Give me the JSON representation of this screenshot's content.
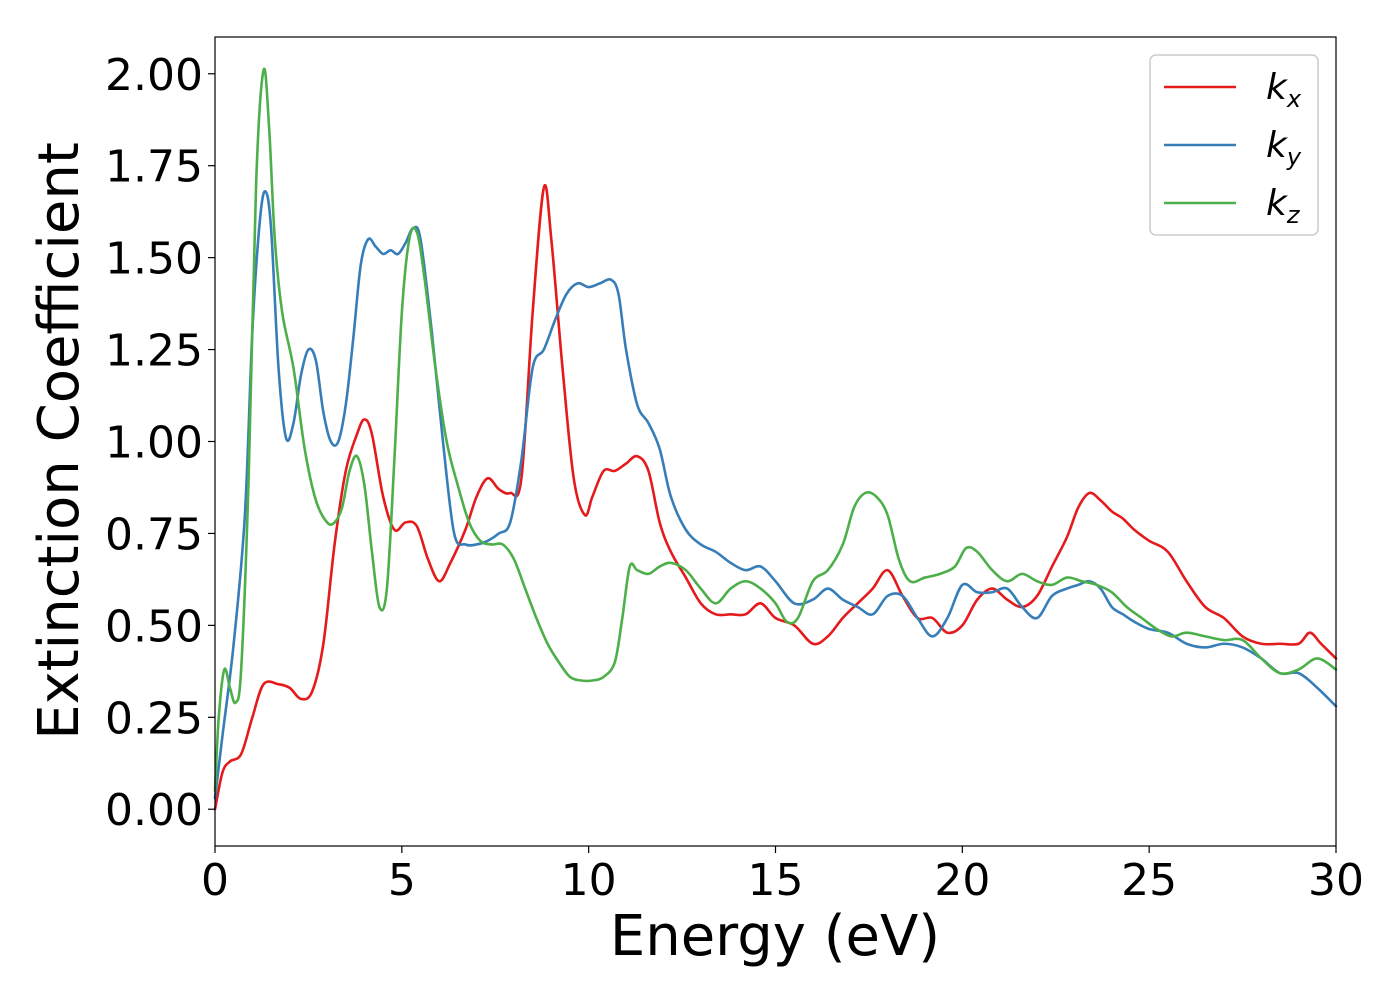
{
  "chart_data": {
    "type": "line",
    "title": "",
    "xlabel": "Energy (eV)",
    "ylabel": "Extinction Coefficient",
    "xlim": [
      0,
      30
    ],
    "ylim": [
      -0.1,
      2.1
    ],
    "xticks": [
      0,
      5,
      10,
      15,
      20,
      25,
      30
    ],
    "xtick_labels": [
      "0",
      "5",
      "10",
      "15",
      "20",
      "25",
      "30"
    ],
    "yticks": [
      0,
      0.25,
      0.5,
      0.75,
      1.0,
      1.25,
      1.5,
      1.75,
      2.0
    ],
    "ytick_labels": [
      "0.00",
      "0.25",
      "0.50",
      "0.75",
      "1.00",
      "1.25",
      "1.50",
      "1.75",
      "2.00"
    ],
    "grid": false,
    "legend_position": "top-right",
    "series": [
      {
        "name": "k",
        "subscript": "x",
        "color": "#e41a1c",
        "x": [
          0,
          0.2,
          0.4,
          0.7,
          1.0,
          1.3,
          1.7,
          2.0,
          2.3,
          2.6,
          2.9,
          3.2,
          3.5,
          3.8,
          4.0,
          4.2,
          4.5,
          4.8,
          5.1,
          5.4,
          5.7,
          6.0,
          6.3,
          6.7,
          7.0,
          7.3,
          7.6,
          7.9,
          8.2,
          8.5,
          8.8,
          9.0,
          9.3,
          9.6,
          9.9,
          10.1,
          10.4,
          10.7,
          11.0,
          11.3,
          11.6,
          11.9,
          12.2,
          12.6,
          13.0,
          13.4,
          13.8,
          14.2,
          14.6,
          15.0,
          15.5,
          16.0,
          16.4,
          16.8,
          17.2,
          17.6,
          18.0,
          18.4,
          18.8,
          19.2,
          19.6,
          20.0,
          20.4,
          20.8,
          21.2,
          21.6,
          22.0,
          22.4,
          22.8,
          23.1,
          23.4,
          23.7,
          24.0,
          24.3,
          24.6,
          25.0,
          25.5,
          26.0,
          26.5,
          27.0,
          27.5,
          28.0,
          28.5,
          29.0,
          29.3,
          29.6,
          30.0
        ],
        "y": [
          0.0,
          0.1,
          0.13,
          0.15,
          0.25,
          0.34,
          0.34,
          0.33,
          0.3,
          0.32,
          0.45,
          0.72,
          0.92,
          1.02,
          1.06,
          1.02,
          0.85,
          0.76,
          0.78,
          0.77,
          0.68,
          0.62,
          0.67,
          0.76,
          0.85,
          0.9,
          0.87,
          0.86,
          0.9,
          1.35,
          1.69,
          1.55,
          1.2,
          0.9,
          0.8,
          0.85,
          0.92,
          0.92,
          0.94,
          0.96,
          0.92,
          0.78,
          0.7,
          0.63,
          0.56,
          0.53,
          0.53,
          0.53,
          0.56,
          0.52,
          0.5,
          0.45,
          0.47,
          0.52,
          0.56,
          0.6,
          0.65,
          0.58,
          0.52,
          0.52,
          0.48,
          0.5,
          0.57,
          0.6,
          0.57,
          0.55,
          0.58,
          0.66,
          0.74,
          0.82,
          0.86,
          0.84,
          0.81,
          0.79,
          0.76,
          0.73,
          0.7,
          0.62,
          0.55,
          0.52,
          0.47,
          0.45,
          0.45,
          0.45,
          0.48,
          0.45,
          0.41
        ]
      },
      {
        "name": "k",
        "subscript": "y",
        "color": "#377eb8",
        "x": [
          0,
          0.2,
          0.5,
          0.8,
          1.0,
          1.2,
          1.35,
          1.5,
          1.7,
          1.9,
          2.1,
          2.3,
          2.5,
          2.7,
          2.9,
          3.1,
          3.3,
          3.5,
          3.7,
          3.9,
          4.1,
          4.3,
          4.5,
          4.7,
          4.9,
          5.1,
          5.3,
          5.5,
          5.8,
          6.1,
          6.4,
          6.7,
          7.0,
          7.3,
          7.6,
          7.9,
          8.2,
          8.5,
          8.8,
          9.1,
          9.4,
          9.7,
          10.0,
          10.3,
          10.6,
          10.8,
          11.0,
          11.3,
          11.6,
          11.9,
          12.2,
          12.6,
          13.0,
          13.4,
          13.8,
          14.2,
          14.6,
          15.0,
          15.5,
          16.0,
          16.4,
          16.8,
          17.2,
          17.6,
          18.0,
          18.4,
          18.8,
          19.2,
          19.6,
          20.0,
          20.4,
          20.8,
          21.2,
          21.6,
          22.0,
          22.4,
          22.8,
          23.1,
          23.4,
          23.7,
          24.0,
          24.3,
          24.6,
          25.0,
          25.5,
          26.0,
          26.5,
          27.0,
          27.5,
          28.0,
          28.5,
          29.0,
          29.5,
          30.0
        ],
        "y": [
          0.03,
          0.2,
          0.45,
          0.8,
          1.3,
          1.6,
          1.68,
          1.58,
          1.2,
          1.01,
          1.05,
          1.18,
          1.25,
          1.22,
          1.08,
          1.0,
          1.0,
          1.1,
          1.28,
          1.48,
          1.55,
          1.53,
          1.51,
          1.52,
          1.51,
          1.54,
          1.58,
          1.55,
          1.3,
          1.0,
          0.75,
          0.72,
          0.72,
          0.73,
          0.75,
          0.78,
          0.95,
          1.2,
          1.25,
          1.33,
          1.4,
          1.43,
          1.42,
          1.43,
          1.44,
          1.4,
          1.25,
          1.1,
          1.05,
          0.98,
          0.85,
          0.76,
          0.72,
          0.7,
          0.67,
          0.65,
          0.66,
          0.62,
          0.56,
          0.57,
          0.6,
          0.57,
          0.55,
          0.53,
          0.58,
          0.58,
          0.52,
          0.47,
          0.52,
          0.61,
          0.59,
          0.59,
          0.6,
          0.55,
          0.52,
          0.58,
          0.6,
          0.61,
          0.62,
          0.6,
          0.55,
          0.53,
          0.51,
          0.49,
          0.48,
          0.45,
          0.44,
          0.45,
          0.44,
          0.41,
          0.37,
          0.37,
          0.33,
          0.28
        ]
      },
      {
        "name": "k",
        "subscript": "z",
        "color": "#4daf4a",
        "x": [
          0,
          0.1,
          0.25,
          0.4,
          0.55,
          0.7,
          0.9,
          1.1,
          1.3,
          1.45,
          1.6,
          1.8,
          2.1,
          2.4,
          2.7,
          3.0,
          3.2,
          3.4,
          3.6,
          3.8,
          4.0,
          4.2,
          4.4,
          4.6,
          4.8,
          5.0,
          5.2,
          5.4,
          5.6,
          5.9,
          6.2,
          6.5,
          6.8,
          7.1,
          7.4,
          7.7,
          8.0,
          8.3,
          8.6,
          8.9,
          9.2,
          9.5,
          9.8,
          10.1,
          10.4,
          10.7,
          10.9,
          11.1,
          11.3,
          11.6,
          11.9,
          12.2,
          12.6,
          13.0,
          13.4,
          13.8,
          14.2,
          14.6,
          15.0,
          15.3,
          15.6,
          16.0,
          16.4,
          16.8,
          17.1,
          17.4,
          17.7,
          18.0,
          18.3,
          18.6,
          19.0,
          19.4,
          19.8,
          20.1,
          20.4,
          20.8,
          21.2,
          21.6,
          22.0,
          22.4,
          22.8,
          23.2,
          23.6,
          24.0,
          24.4,
          24.8,
          25.2,
          25.6,
          26.0,
          26.5,
          27.0,
          27.5,
          28.0,
          28.5,
          29.0,
          29.5,
          30.0
        ],
        "y": [
          0.05,
          0.25,
          0.38,
          0.33,
          0.29,
          0.38,
          0.9,
          1.7,
          2.01,
          1.85,
          1.55,
          1.35,
          1.2,
          0.98,
          0.84,
          0.78,
          0.78,
          0.82,
          0.92,
          0.96,
          0.88,
          0.7,
          0.55,
          0.6,
          0.95,
          1.35,
          1.55,
          1.57,
          1.45,
          1.2,
          1.0,
          0.88,
          0.78,
          0.73,
          0.72,
          0.72,
          0.68,
          0.6,
          0.52,
          0.45,
          0.4,
          0.36,
          0.35,
          0.35,
          0.36,
          0.4,
          0.52,
          0.66,
          0.65,
          0.64,
          0.66,
          0.67,
          0.65,
          0.6,
          0.56,
          0.6,
          0.62,
          0.6,
          0.56,
          0.51,
          0.52,
          0.62,
          0.65,
          0.72,
          0.82,
          0.86,
          0.85,
          0.8,
          0.68,
          0.62,
          0.63,
          0.64,
          0.66,
          0.71,
          0.7,
          0.65,
          0.62,
          0.64,
          0.62,
          0.61,
          0.63,
          0.62,
          0.61,
          0.59,
          0.55,
          0.52,
          0.49,
          0.47,
          0.48,
          0.47,
          0.46,
          0.46,
          0.41,
          0.37,
          0.38,
          0.41,
          0.38
        ]
      }
    ]
  }
}
